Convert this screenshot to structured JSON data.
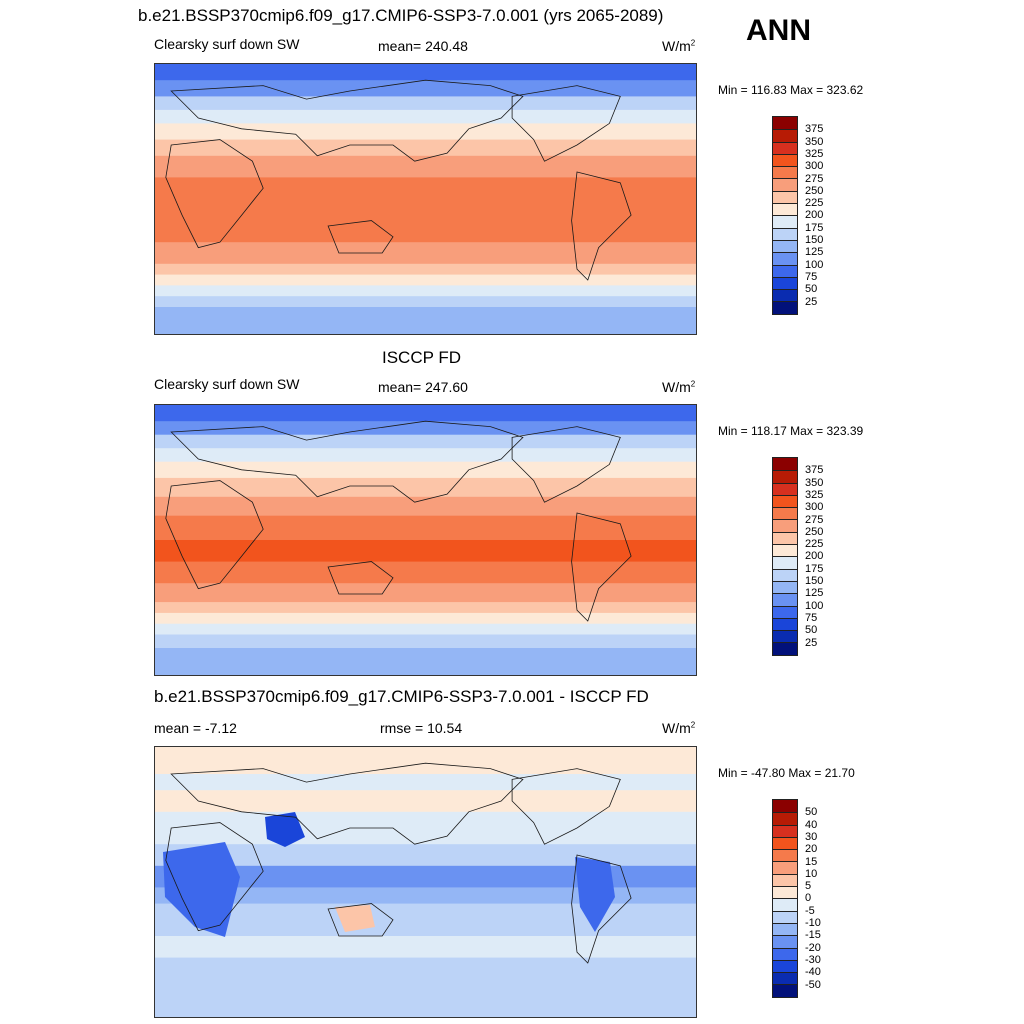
{
  "header": {
    "title": "b.e21.BSSP370cmip6.f09_g17.CMIP6-SSP3-7.0.001 (yrs 2065-2089)",
    "season": "ANN"
  },
  "panels": [
    {
      "id": "model",
      "subtitle": "",
      "left_label": "Clearsky surf down SW",
      "center_label": "mean= 240.48",
      "units": "W/m",
      "units_exp": "2",
      "minmax": "Min = 116.83 Max = 323.62",
      "colorbar_labels": [
        "375",
        "350",
        "325",
        "300",
        "275",
        "250",
        "225",
        "200",
        "175",
        "150",
        "125",
        "100",
        "75",
        "50",
        "25"
      ]
    },
    {
      "id": "obs",
      "subtitle": "ISCCP FD",
      "left_label": "Clearsky surf down SW",
      "center_label": "mean= 247.60",
      "units": "W/m",
      "units_exp": "2",
      "minmax": "Min = 118.17 Max = 323.39",
      "colorbar_labels": [
        "375",
        "350",
        "325",
        "300",
        "275",
        "250",
        "225",
        "200",
        "175",
        "150",
        "125",
        "100",
        "75",
        "50",
        "25"
      ]
    },
    {
      "id": "diff",
      "subtitle": "b.e21.BSSP370cmip6.f09_g17.CMIP6-SSP3-7.0.001 - ISCCP FD",
      "left_label": "mean =  -7.12",
      "center_label": "rmse =  10.54",
      "units": "W/m",
      "units_exp": "2",
      "minmax": "Min = -47.80 Max =  21.70",
      "colorbar_labels": [
        "50",
        "40",
        "30",
        "20",
        "15",
        "10",
        "5",
        "0",
        "-5",
        "-10",
        "-15",
        "-20",
        "-30",
        "-40",
        "-50"
      ]
    }
  ],
  "colors": {
    "abs_scale": [
      "#8b0000",
      "#b71b05",
      "#d7301f",
      "#f2541d",
      "#f57a4b",
      "#f89e7b",
      "#fcc5a8",
      "#fde9d7",
      "#deebf7",
      "#bcd3f7",
      "#94b6f5",
      "#6a92f2",
      "#3d68ec",
      "#1a45d9",
      "#0a2cb0",
      "#02117a"
    ],
    "diff_scale": [
      "#8b0000",
      "#b71b05",
      "#d7301f",
      "#f2541d",
      "#f57a4b",
      "#f89e7b",
      "#fcc5a8",
      "#fde9d7",
      "#deebf7",
      "#bcd3f7",
      "#94b6f5",
      "#6a92f2",
      "#3d68ec",
      "#1a45d9",
      "#0a2cb0",
      "#02117a"
    ]
  }
}
